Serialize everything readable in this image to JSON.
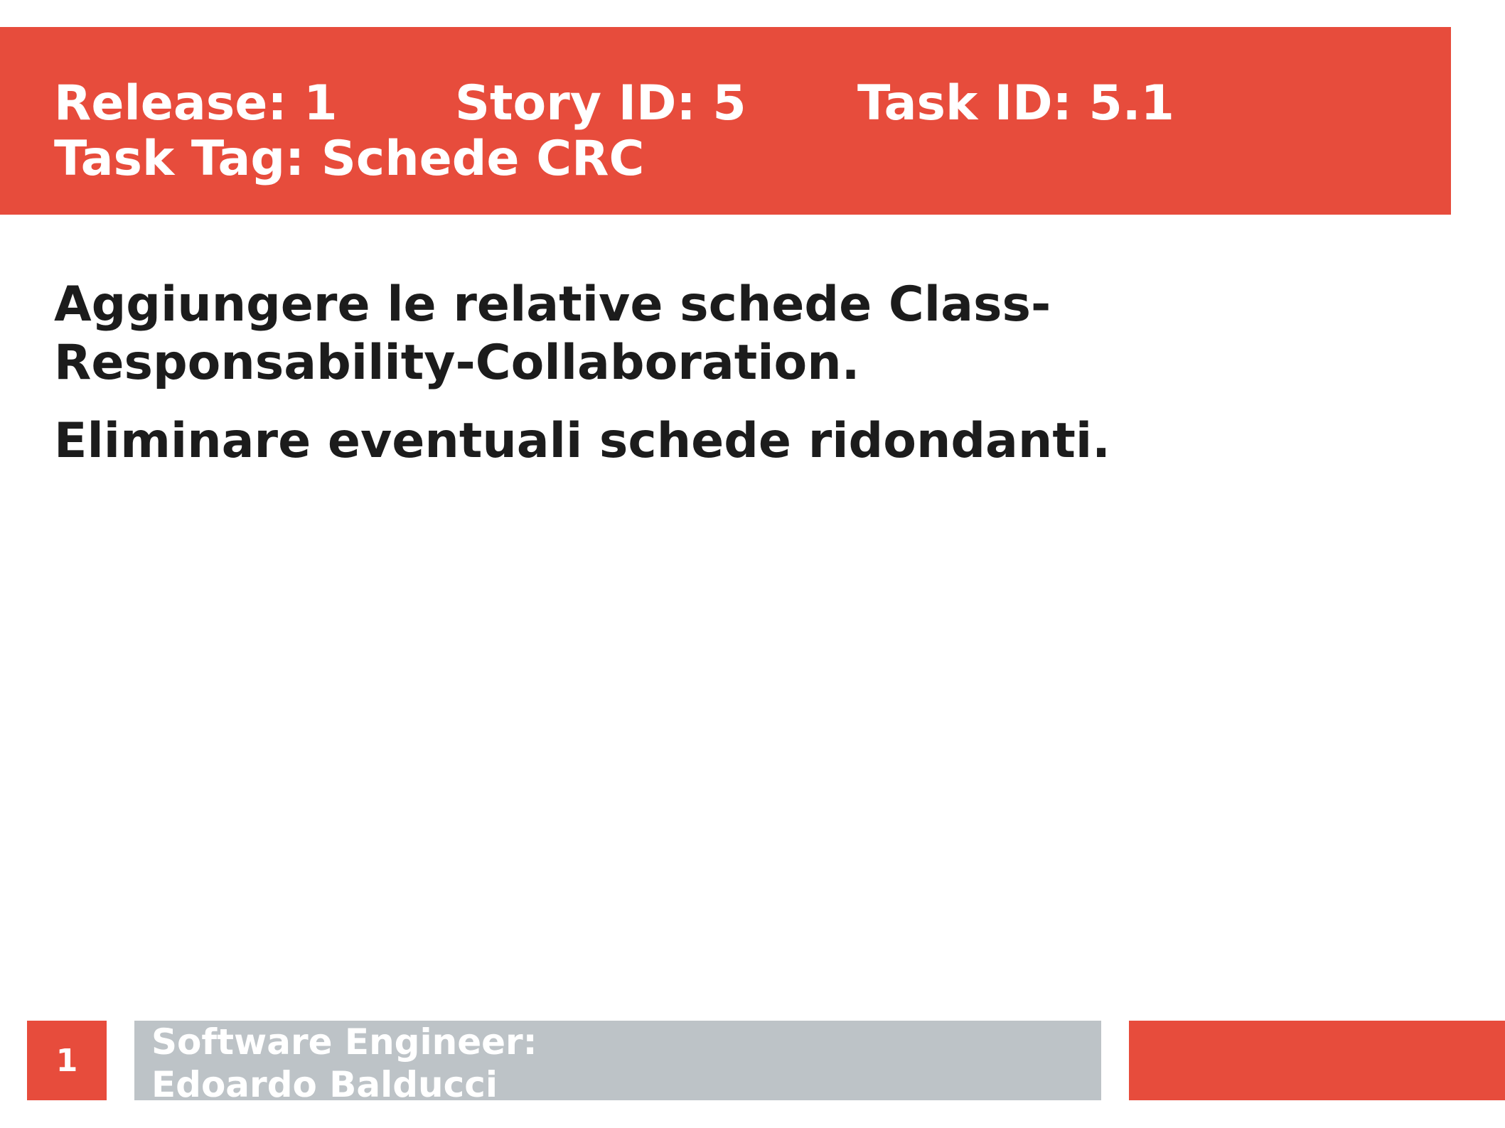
{
  "header": {
    "release_label": "Release: 1",
    "story_label": "Story ID: 5",
    "task_label": "Task ID: 5.1",
    "tag_label": "Task Tag: Schede CRC"
  },
  "content": {
    "line1": "Aggiungere le relative schede Class-",
    "line2": "Responsability-Collaboration.",
    "line3": "Eliminare eventuali schede ridondanti."
  },
  "footer": {
    "page_number": "1",
    "author_line1": "Software Engineer:",
    "author_line2": "Edoardo Balducci"
  },
  "colors": {
    "accent": "#e74c3c",
    "footer_gray": "#bdc3c7",
    "text": "#1c1c1c"
  }
}
